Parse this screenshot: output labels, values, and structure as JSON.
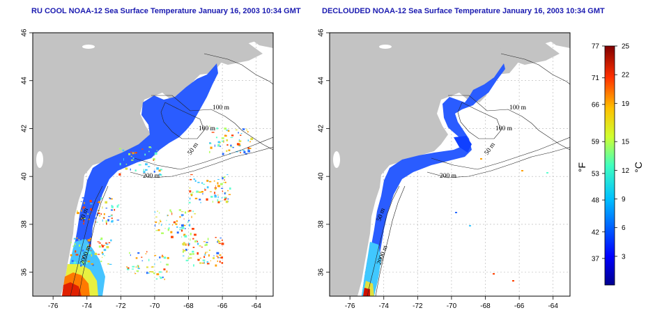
{
  "panels": [
    {
      "title": "RU COOL NOAA-12 Sea Surface Temperature January 16, 2003 10:34 GMT",
      "mode": "cool",
      "contour_labels": [
        "100 m",
        "100 m",
        "50 m",
        "200 m",
        "50 m",
        "2000 m"
      ]
    },
    {
      "title": "DECLOUDED NOAA-12 Sea Surface Temperature January 16, 2003 10:34 GMT",
      "mode": "declouded",
      "contour_labels": [
        "100 m",
        "100 m",
        "50 m",
        "200 m",
        "50 m",
        "2000 m"
      ]
    }
  ],
  "axes": {
    "lon_ticks": [
      "-76",
      "-74",
      "-72",
      "-70",
      "-68",
      "-66",
      "-64"
    ],
    "lat_ticks": [
      "36",
      "38",
      "40",
      "42",
      "44",
      "46"
    ],
    "lon_range": [
      -77.2,
      -63.0
    ],
    "lat_range": [
      35.0,
      46.0
    ]
  },
  "colorbar": {
    "fahrenheit_label": "°F",
    "celsius_label": "°C",
    "fahrenheit_ticks": [
      "77",
      "71",
      "66",
      "59",
      "53",
      "48",
      "42",
      "37"
    ],
    "celsius_ticks": [
      "25",
      "22",
      "19",
      "15",
      "12",
      "9",
      "6",
      "3"
    ],
    "celsius_range": [
      0,
      25
    ]
  },
  "colors": {
    "land": "#c3c3c3",
    "title": "#1a1ab0",
    "grid": "#b0b0b0"
  }
}
